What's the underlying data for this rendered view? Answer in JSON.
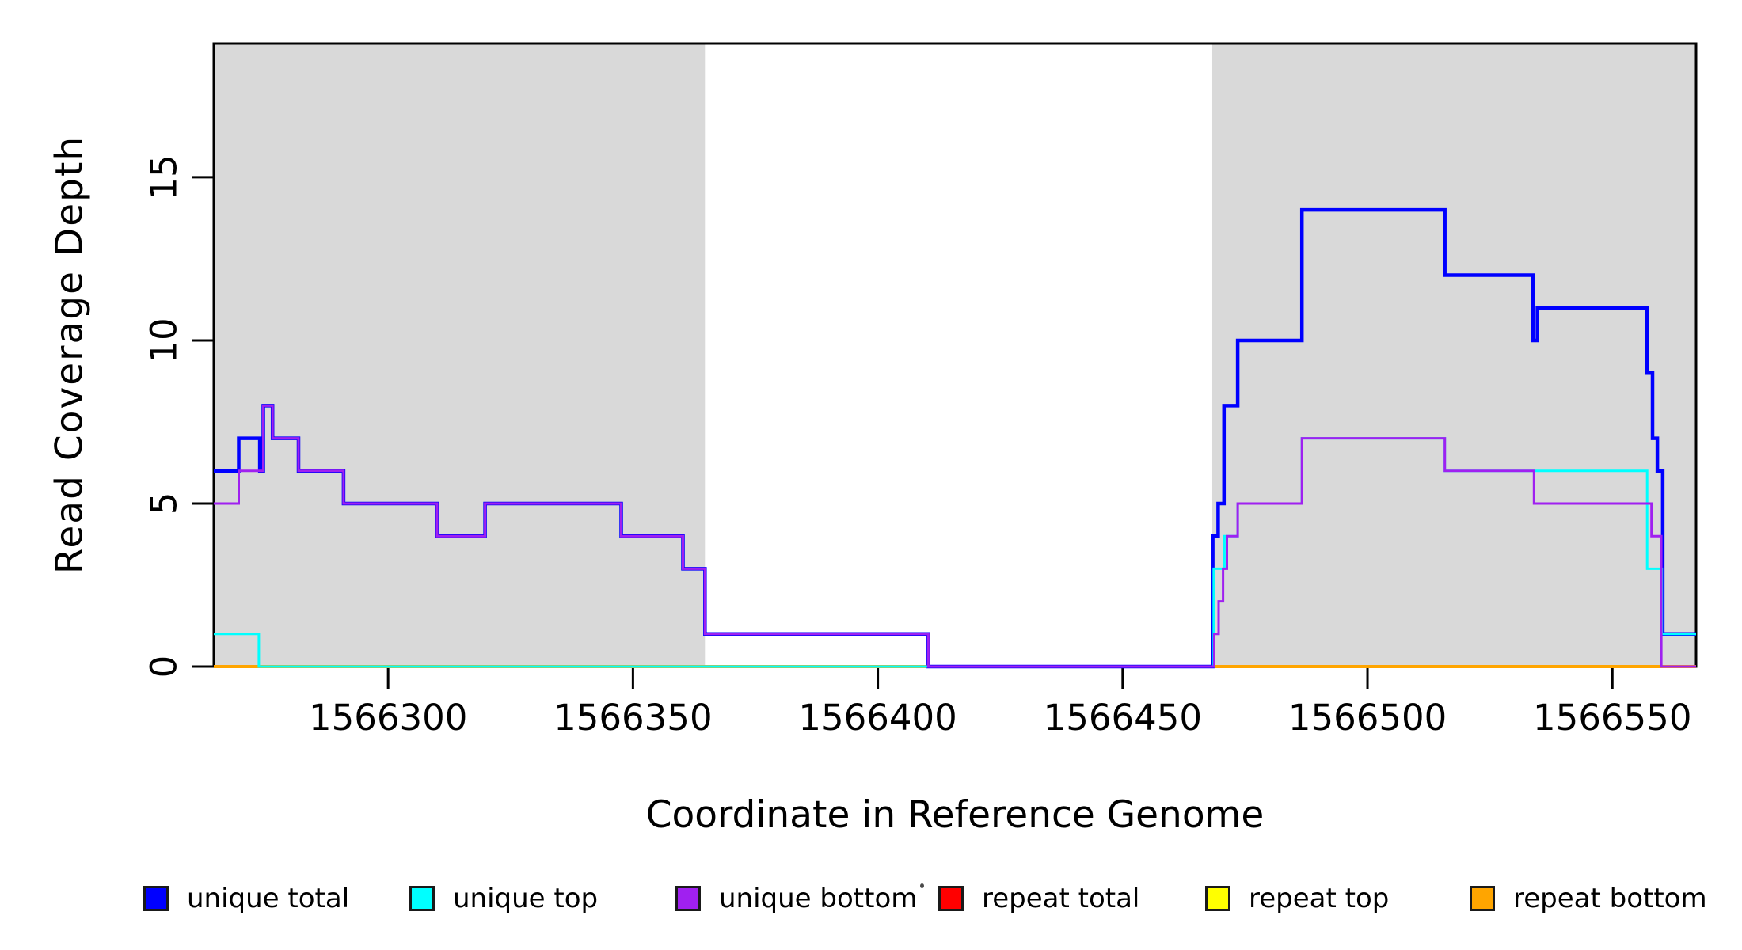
{
  "chart_data": {
    "type": "step-line",
    "title": "",
    "xlabel": "Coordinate in Reference Genome",
    "ylabel": "Read Coverage Depth",
    "xlim": [
      1566264.4,
      1566567.1
    ],
    "ylim": [
      0,
      19.1
    ],
    "x_ticks": [
      1566300,
      1566350,
      1566400,
      1566450,
      1566500,
      1566550
    ],
    "y_ticks": [
      0,
      5,
      10,
      15
    ],
    "grid": false,
    "frame_color": "#000000",
    "plot_background": "#ffffff",
    "highlight_regions": [
      {
        "name": "repeat-region-left",
        "x0": 1566264.4,
        "x1": 1566364.7,
        "color": "#D9D9D9"
      },
      {
        "name": "repeat-region-right",
        "x0": 1566468.3,
        "x1": 1566567.1,
        "color": "#D9D9D9"
      }
    ],
    "series": [
      {
        "name": "repeat total",
        "color": "#FF0000",
        "line_width": 4,
        "steps": [
          [
            1566264.4,
            0
          ]
        ]
      },
      {
        "name": "repeat top",
        "color": "#FFFF00",
        "line_width": 4,
        "steps": [
          [
            1566264.4,
            0
          ]
        ]
      },
      {
        "name": "repeat bottom",
        "color": "#FFA500",
        "line_width": 4,
        "steps": [
          [
            1566264.4,
            0
          ]
        ]
      },
      {
        "name": "unique total",
        "color": "#0000FF",
        "line_width": 4.5,
        "steps": [
          [
            1566264.4,
            6
          ],
          [
            1566269.5,
            7
          ],
          [
            1566273.8,
            6
          ],
          [
            1566274.5,
            8
          ],
          [
            1566276.4,
            7
          ],
          [
            1566281.7,
            6
          ],
          [
            1566290.9,
            5
          ],
          [
            1566310,
            4
          ],
          [
            1566319.8,
            5
          ],
          [
            1566347.6,
            4
          ],
          [
            1566360.2,
            3
          ],
          [
            1566364.7,
            1
          ],
          [
            1566410.3,
            0
          ],
          [
            1566468.4,
            4
          ],
          [
            1566469.5,
            5
          ],
          [
            1566470.7,
            8
          ],
          [
            1566473.5,
            10
          ],
          [
            1566486.6,
            14
          ],
          [
            1566515.8,
            12
          ],
          [
            1566533.8,
            10
          ],
          [
            1566534.7,
            11
          ],
          [
            1566557.1,
            9
          ],
          [
            1566558.2,
            7
          ],
          [
            1566559.2,
            6
          ],
          [
            1566560.3,
            1
          ]
        ]
      },
      {
        "name": "unique top",
        "color": "#00FFFF",
        "line_width": 3,
        "steps": [
          [
            1566264.4,
            1
          ],
          [
            1566273.6,
            0
          ],
          [
            1566468.6,
            3
          ],
          [
            1566470.8,
            4
          ],
          [
            1566473.5,
            5
          ],
          [
            1566486.6,
            7
          ],
          [
            1566515.8,
            6
          ],
          [
            1566557.1,
            3
          ],
          [
            1566560.1,
            1
          ]
        ]
      },
      {
        "name": "unique bottom",
        "color": "#A020F0",
        "line_width": 3,
        "steps": [
          [
            1566264.4,
            5
          ],
          [
            1566269.5,
            6
          ],
          [
            1566274.5,
            8
          ],
          [
            1566276.4,
            7
          ],
          [
            1566281.7,
            6
          ],
          [
            1566290.9,
            5
          ],
          [
            1566310,
            4
          ],
          [
            1566319.8,
            5
          ],
          [
            1566347.6,
            4
          ],
          [
            1566360.2,
            3
          ],
          [
            1566364.7,
            1
          ],
          [
            1566410.3,
            0
          ],
          [
            1566468.7,
            1
          ],
          [
            1566469.6,
            2
          ],
          [
            1566470.5,
            3
          ],
          [
            1566471.3,
            4
          ],
          [
            1566473.5,
            5
          ],
          [
            1566486.6,
            7
          ],
          [
            1566515.8,
            6
          ],
          [
            1566534,
            5
          ],
          [
            1566558,
            4
          ],
          [
            1566560,
            0
          ]
        ]
      }
    ],
    "legend": [
      {
        "label": "unique total",
        "color": "#0000FF"
      },
      {
        "label": "unique top",
        "color": "#00FFFF"
      },
      {
        "label": "unique bottom",
        "color": "#A020F0"
      },
      {
        "label": "repeat total",
        "color": "#FF0000"
      },
      {
        "label": "repeat top",
        "color": "#FFFF00"
      },
      {
        "label": "repeat bottom",
        "color": "#FFA500"
      }
    ],
    "legend_position": "bottom"
  }
}
